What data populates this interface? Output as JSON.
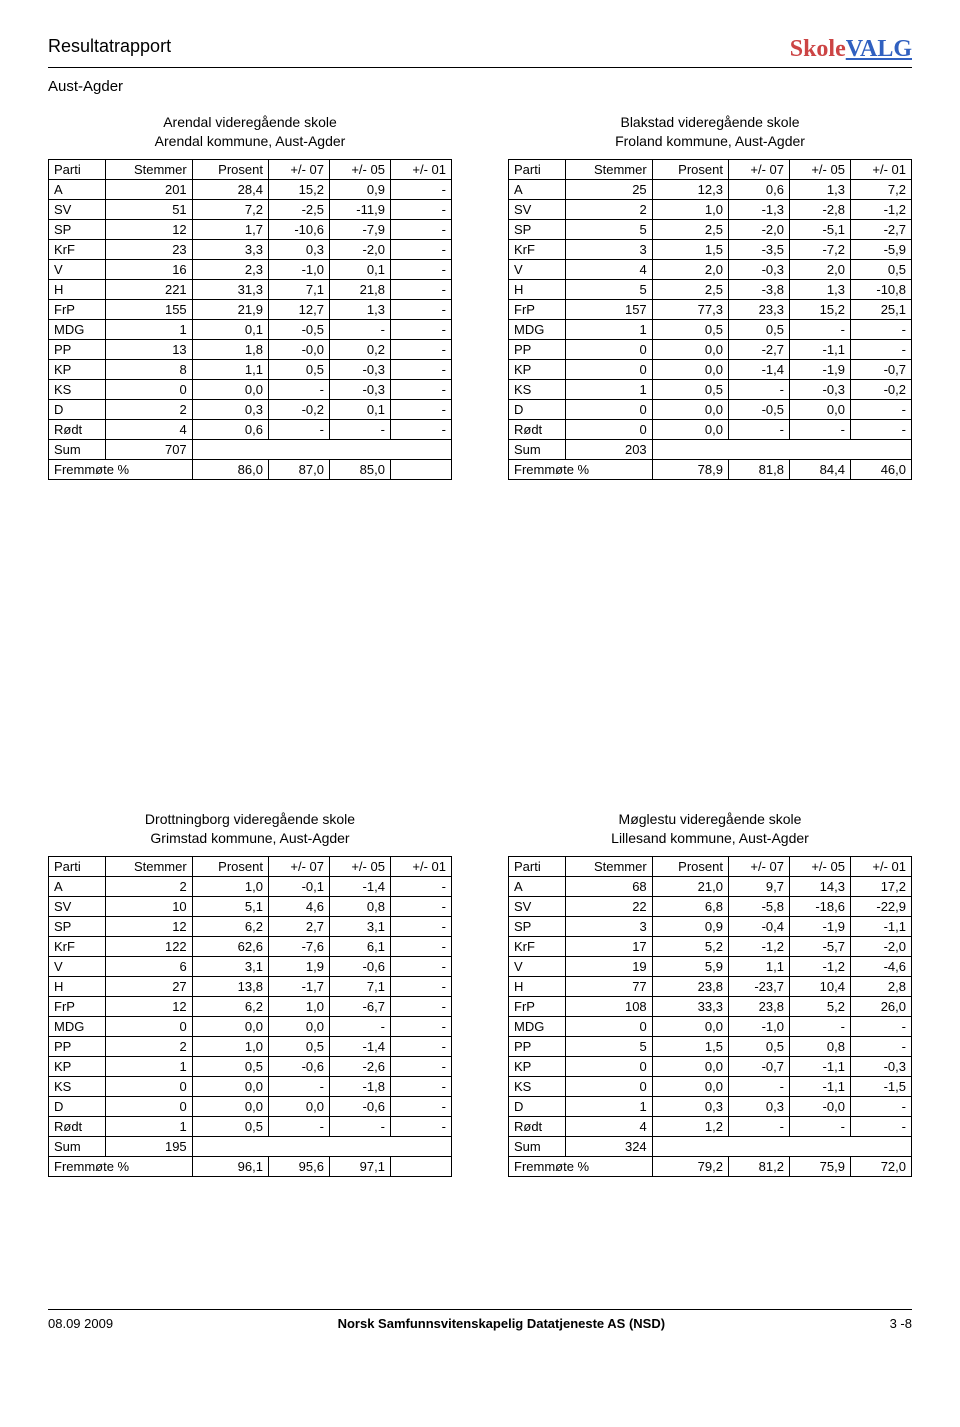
{
  "header": {
    "title": "Resultatrapport",
    "logo_a": "Skole",
    "logo_b": "VALG",
    "region": "Aust-Agder"
  },
  "columns": [
    "Parti",
    "Stemmer",
    "Prosent",
    "+/- 07",
    "+/- 05",
    "+/- 01"
  ],
  "sum_label": "Sum",
  "fremmote_label": "Fremmøte %",
  "tables": [
    [
      {
        "title1": "Arendal videregående skole",
        "title2": "Arendal kommune, Aust-Agder",
        "rows": [
          [
            "A",
            "201",
            "28,4",
            "15,2",
            "0,9",
            "-"
          ],
          [
            "SV",
            "51",
            "7,2",
            "-2,5",
            "-11,9",
            "-"
          ],
          [
            "SP",
            "12",
            "1,7",
            "-10,6",
            "-7,9",
            "-"
          ],
          [
            "KrF",
            "23",
            "3,3",
            "0,3",
            "-2,0",
            "-"
          ],
          [
            "V",
            "16",
            "2,3",
            "-1,0",
            "0,1",
            "-"
          ],
          [
            "H",
            "221",
            "31,3",
            "7,1",
            "21,8",
            "-"
          ],
          [
            "FrP",
            "155",
            "21,9",
            "12,7",
            "1,3",
            "-"
          ],
          [
            "MDG",
            "1",
            "0,1",
            "-0,5",
            "-",
            "-"
          ],
          [
            "PP",
            "13",
            "1,8",
            "-0,0",
            "0,2",
            "-"
          ],
          [
            "KP",
            "8",
            "1,1",
            "0,5",
            "-0,3",
            "-"
          ],
          [
            "KS",
            "0",
            "0,0",
            "-",
            "-0,3",
            "-"
          ],
          [
            "D",
            "2",
            "0,3",
            "-0,2",
            "0,1",
            "-"
          ],
          [
            "Rødt",
            "4",
            "0,6",
            "-",
            "-",
            "-"
          ]
        ],
        "sum": "707",
        "fremmote": [
          "86,0",
          "87,0",
          "85,0",
          ""
        ]
      },
      {
        "title1": "Blakstad videregående skole",
        "title2": "Froland kommune, Aust-Agder",
        "rows": [
          [
            "A",
            "25",
            "12,3",
            "0,6",
            "1,3",
            "7,2"
          ],
          [
            "SV",
            "2",
            "1,0",
            "-1,3",
            "-2,8",
            "-1,2"
          ],
          [
            "SP",
            "5",
            "2,5",
            "-2,0",
            "-5,1",
            "-2,7"
          ],
          [
            "KrF",
            "3",
            "1,5",
            "-3,5",
            "-7,2",
            "-5,9"
          ],
          [
            "V",
            "4",
            "2,0",
            "-0,3",
            "2,0",
            "0,5"
          ],
          [
            "H",
            "5",
            "2,5",
            "-3,8",
            "1,3",
            "-10,8"
          ],
          [
            "FrP",
            "157",
            "77,3",
            "23,3",
            "15,2",
            "25,1"
          ],
          [
            "MDG",
            "1",
            "0,5",
            "0,5",
            "-",
            "-"
          ],
          [
            "PP",
            "0",
            "0,0",
            "-2,7",
            "-1,1",
            "-"
          ],
          [
            "KP",
            "0",
            "0,0",
            "-1,4",
            "-1,9",
            "-0,7"
          ],
          [
            "KS",
            "1",
            "0,5",
            "-",
            "-0,3",
            "-0,2"
          ],
          [
            "D",
            "0",
            "0,0",
            "-0,5",
            "0,0",
            "-"
          ],
          [
            "Rødt",
            "0",
            "0,0",
            "-",
            "-",
            "-"
          ]
        ],
        "sum": "203",
        "fremmote": [
          "78,9",
          "81,8",
          "84,4",
          "46,0"
        ]
      }
    ],
    [
      {
        "title1": "Drottningborg videregående skole",
        "title2": "Grimstad kommune, Aust-Agder",
        "rows": [
          [
            "A",
            "2",
            "1,0",
            "-0,1",
            "-1,4",
            "-"
          ],
          [
            "SV",
            "10",
            "5,1",
            "4,6",
            "0,8",
            "-"
          ],
          [
            "SP",
            "12",
            "6,2",
            "2,7",
            "3,1",
            "-"
          ],
          [
            "KrF",
            "122",
            "62,6",
            "-7,6",
            "6,1",
            "-"
          ],
          [
            "V",
            "6",
            "3,1",
            "1,9",
            "-0,6",
            "-"
          ],
          [
            "H",
            "27",
            "13,8",
            "-1,7",
            "7,1",
            "-"
          ],
          [
            "FrP",
            "12",
            "6,2",
            "1,0",
            "-6,7",
            "-"
          ],
          [
            "MDG",
            "0",
            "0,0",
            "0,0",
            "-",
            "-"
          ],
          [
            "PP",
            "2",
            "1,0",
            "0,5",
            "-1,4",
            "-"
          ],
          [
            "KP",
            "1",
            "0,5",
            "-0,6",
            "-2,6",
            "-"
          ],
          [
            "KS",
            "0",
            "0,0",
            "-",
            "-1,8",
            "-"
          ],
          [
            "D",
            "0",
            "0,0",
            "0,0",
            "-0,6",
            "-"
          ],
          [
            "Rødt",
            "1",
            "0,5",
            "-",
            "-",
            "-"
          ]
        ],
        "sum": "195",
        "fremmote": [
          "96,1",
          "95,6",
          "97,1",
          ""
        ]
      },
      {
        "title1": "Møglestu videregående skole",
        "title2": "Lillesand kommune, Aust-Agder",
        "rows": [
          [
            "A",
            "68",
            "21,0",
            "9,7",
            "14,3",
            "17,2"
          ],
          [
            "SV",
            "22",
            "6,8",
            "-5,8",
            "-18,6",
            "-22,9"
          ],
          [
            "SP",
            "3",
            "0,9",
            "-0,4",
            "-1,9",
            "-1,1"
          ],
          [
            "KrF",
            "17",
            "5,2",
            "-1,2",
            "-5,7",
            "-2,0"
          ],
          [
            "V",
            "19",
            "5,9",
            "1,1",
            "-1,2",
            "-4,6"
          ],
          [
            "H",
            "77",
            "23,8",
            "-23,7",
            "10,4",
            "2,8"
          ],
          [
            "FrP",
            "108",
            "33,3",
            "23,8",
            "5,2",
            "26,0"
          ],
          [
            "MDG",
            "0",
            "0,0",
            "-1,0",
            "-",
            "-"
          ],
          [
            "PP",
            "5",
            "1,5",
            "0,5",
            "0,8",
            "-"
          ],
          [
            "KP",
            "0",
            "0,0",
            "-0,7",
            "-1,1",
            "-0,3"
          ],
          [
            "KS",
            "0",
            "0,0",
            "-",
            "-1,1",
            "-1,5"
          ],
          [
            "D",
            "1",
            "0,3",
            "0,3",
            "-0,0",
            "-"
          ],
          [
            "Rødt",
            "4",
            "1,2",
            "-",
            "-",
            "-"
          ]
        ],
        "sum": "324",
        "fremmote": [
          "79,2",
          "81,2",
          "75,9",
          "72,0"
        ]
      }
    ]
  ],
  "footer": {
    "left": "08.09 2009",
    "center": "Norsk Samfunnsvitenskapelig Datatjeneste AS (NSD)",
    "right": "3 -8"
  }
}
